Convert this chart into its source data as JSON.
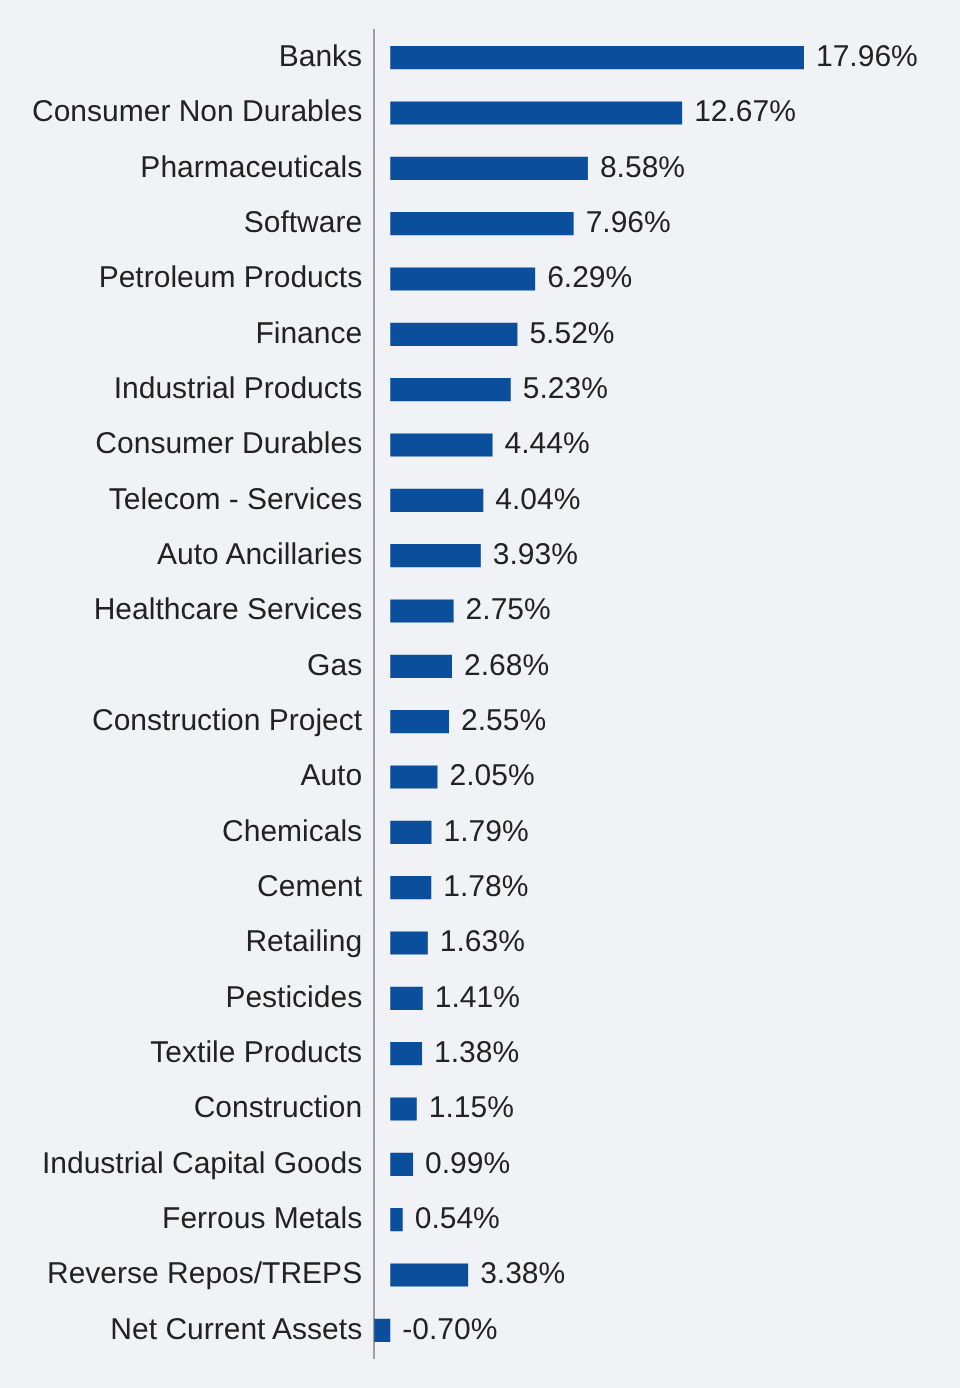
{
  "chart_data": {
    "type": "bar",
    "orientation": "horizontal",
    "color": "#0b4f9c",
    "categories": [
      "Banks",
      "Consumer Non Durables",
      "Pharmaceuticals",
      "Software",
      "Petroleum Products",
      "Finance",
      "Industrial Products",
      "Consumer Durables",
      "Telecom - Services",
      "Auto Ancillaries",
      "Healthcare Services",
      "Gas",
      "Construction Project",
      "Auto",
      "Chemicals",
      "Cement",
      "Retailing",
      "Pesticides",
      "Textile Products",
      "Construction",
      "Industrial Capital Goods",
      "Ferrous Metals",
      "Reverse Repos/TREPS",
      "Net Current Assets"
    ],
    "values": [
      17.96,
      12.67,
      8.58,
      7.96,
      6.29,
      5.52,
      5.23,
      4.44,
      4.04,
      3.93,
      2.75,
      2.68,
      2.55,
      2.05,
      1.79,
      1.78,
      1.63,
      1.41,
      1.38,
      1.15,
      0.99,
      0.54,
      3.38,
      -0.7
    ],
    "value_labels": [
      "17.96%",
      "12.67%",
      "8.58%",
      "7.96%",
      "6.29%",
      "5.52%",
      "5.23%",
      "4.44%",
      "4.04%",
      "3.93%",
      "2.75%",
      "2.68%",
      "2.55%",
      "2.05%",
      "1.79%",
      "1.78%",
      "1.63%",
      "1.41%",
      "1.38%",
      "1.15%",
      "0.99%",
      "0.54%",
      "3.38%",
      "-0.70%"
    ],
    "grid": false,
    "legend": false
  }
}
